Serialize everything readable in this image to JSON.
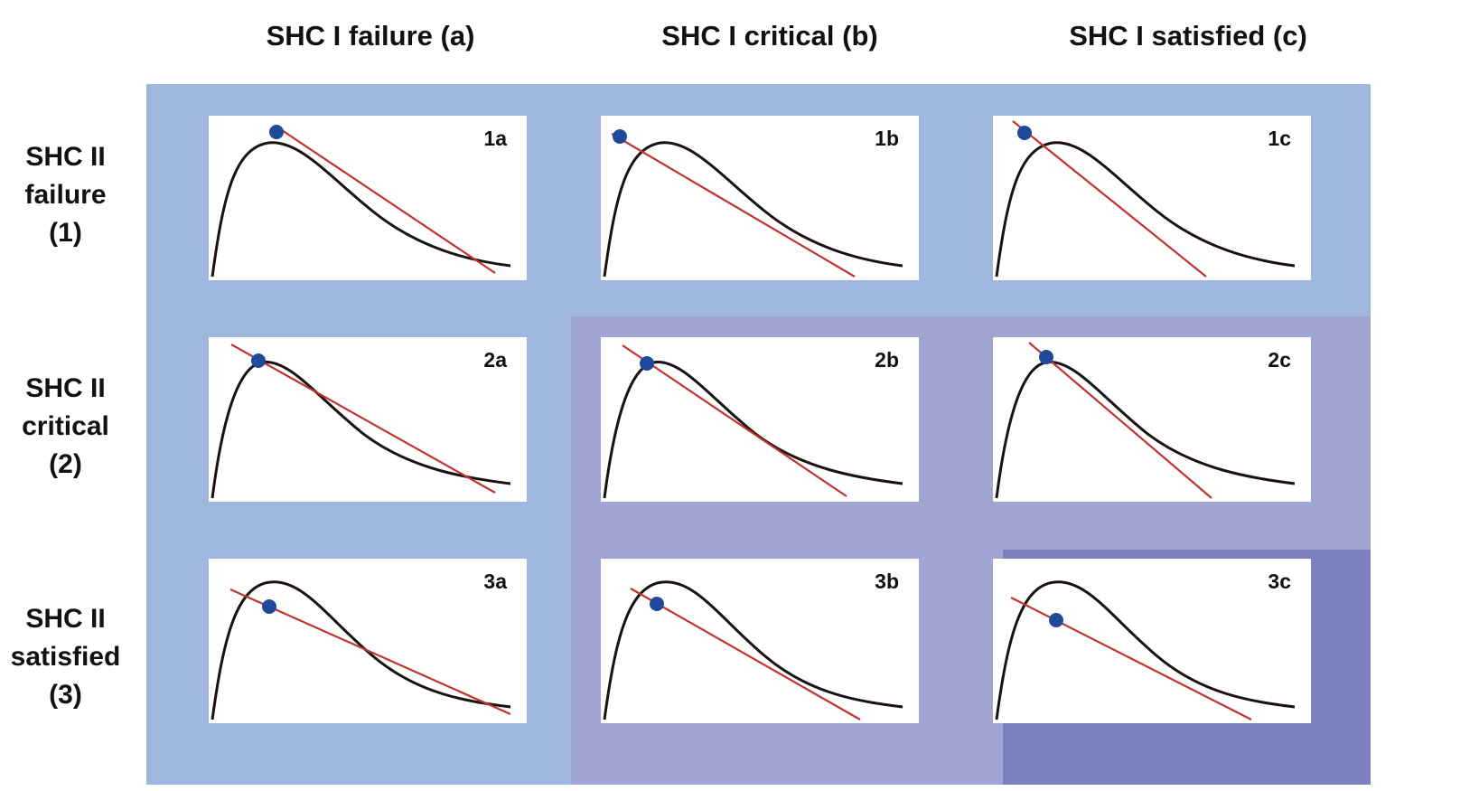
{
  "column_headers": [
    {
      "key": "a",
      "label": "SHC I failure (a)"
    },
    {
      "key": "b",
      "label": "SHC I critical (b)"
    },
    {
      "key": "c",
      "label": "SHC I satisfied (c)"
    }
  ],
  "row_headers": [
    {
      "key": "1",
      "lines": [
        "SHC II",
        "failure",
        "(1)"
      ]
    },
    {
      "key": "2",
      "lines": [
        "SHC II",
        "critical",
        "(2)"
      ]
    },
    {
      "key": "3",
      "lines": [
        "SHC II",
        "satisfied",
        "(3)"
      ]
    }
  ],
  "colors": {
    "background_failure_zone": "#9fb7de",
    "background_critical_zone": "#a0a5d4",
    "background_satisfied_zone": "#7b80bf",
    "curve": "#1a1212",
    "tangent_line": "#c0342f",
    "marker": "#1f4a99"
  },
  "panels": [
    {
      "id": "1a",
      "label": "1a"
    },
    {
      "id": "1b",
      "label": "1b"
    },
    {
      "id": "1c",
      "label": "1c"
    },
    {
      "id": "2a",
      "label": "2a"
    },
    {
      "id": "2b",
      "label": "2b"
    },
    {
      "id": "2c",
      "label": "2c"
    },
    {
      "id": "3a",
      "label": "3a"
    },
    {
      "id": "3b",
      "label": "3b"
    },
    {
      "id": "3c",
      "label": "3c"
    }
  ]
}
